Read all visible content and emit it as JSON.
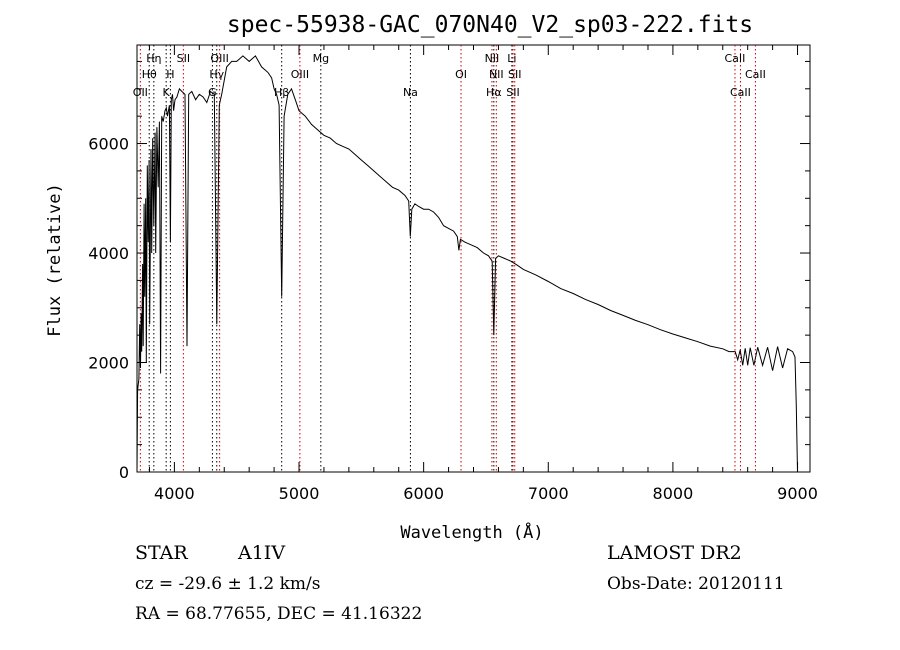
{
  "chart_data": {
    "type": "line",
    "title": "spec-55938-GAC_070N40_V2_sp03-222.fits",
    "xlabel": "Wavelength (Å)",
    "ylabel": "Flux (relative)",
    "xlim": [
      3700,
      9100
    ],
    "ylim": [
      0,
      7800
    ],
    "xticks": [
      4000,
      5000,
      6000,
      7000,
      8000,
      9000
    ],
    "yticks": [
      0,
      2000,
      4000,
      6000
    ],
    "grid": false,
    "series": [
      {
        "points": [
          [
            3700,
            0
          ],
          [
            3705,
            1500
          ],
          [
            3715,
            1700
          ],
          [
            3722,
            2700
          ],
          [
            3728,
            1900
          ],
          [
            3733,
            2900
          ],
          [
            3738,
            2200
          ],
          [
            3745,
            3800
          ],
          [
            3750,
            2300
          ],
          [
            3757,
            4900
          ],
          [
            3762,
            3200
          ],
          [
            3770,
            5000
          ],
          [
            3775,
            2000
          ],
          [
            3783,
            5600
          ],
          [
            3790,
            4200
          ],
          [
            3797,
            5700
          ],
          [
            3802,
            2700
          ],
          [
            3812,
            5900
          ],
          [
            3818,
            4000
          ],
          [
            3826,
            6100
          ],
          [
            3835,
            4500
          ],
          [
            3845,
            6200
          ],
          [
            3850,
            4000
          ],
          [
            3860,
            6300
          ],
          [
            3870,
            5200
          ],
          [
            3880,
            6400
          ],
          [
            3889,
            1800
          ],
          [
            3898,
            6500
          ],
          [
            3910,
            6400
          ],
          [
            3925,
            6600
          ],
          [
            3935,
            6650
          ],
          [
            3945,
            6500
          ],
          [
            3960,
            6700
          ],
          [
            3968,
            4200
          ],
          [
            3975,
            6800
          ],
          [
            3985,
            6900
          ],
          [
            3994,
            6600
          ],
          [
            4005,
            6800
          ],
          [
            4020,
            6850
          ],
          [
            4040,
            7000
          ],
          [
            4060,
            6950
          ],
          [
            4085,
            6900
          ],
          [
            4101,
            2300
          ],
          [
            4115,
            6900
          ],
          [
            4140,
            6950
          ],
          [
            4170,
            6800
          ],
          [
            4200,
            6900
          ],
          [
            4230,
            6850
          ],
          [
            4260,
            6750
          ],
          [
            4290,
            6950
          ],
          [
            4320,
            6900
          ],
          [
            4340,
            2700
          ],
          [
            4360,
            6700
          ],
          [
            4380,
            6900
          ],
          [
            4420,
            7400
          ],
          [
            4460,
            7500
          ],
          [
            4500,
            7500
          ],
          [
            4550,
            7600
          ],
          [
            4600,
            7500
          ],
          [
            4650,
            7600
          ],
          [
            4700,
            7400
          ],
          [
            4750,
            7300
          ],
          [
            4780,
            7200
          ],
          [
            4800,
            7000
          ],
          [
            4820,
            6900
          ],
          [
            4840,
            6700
          ],
          [
            4861,
            3200
          ],
          [
            4880,
            6500
          ],
          [
            4910,
            6900
          ],
          [
            4940,
            7000
          ],
          [
            4970,
            6800
          ],
          [
            5000,
            6600
          ],
          [
            5050,
            6500
          ],
          [
            5100,
            6350
          ],
          [
            5150,
            6250
          ],
          [
            5200,
            6150
          ],
          [
            5250,
            6100
          ],
          [
            5300,
            6000
          ],
          [
            5350,
            5950
          ],
          [
            5400,
            5900
          ],
          [
            5450,
            5800
          ],
          [
            5500,
            5700
          ],
          [
            5550,
            5600
          ],
          [
            5600,
            5500
          ],
          [
            5650,
            5400
          ],
          [
            5700,
            5300
          ],
          [
            5750,
            5200
          ],
          [
            5800,
            5150
          ],
          [
            5850,
            5050
          ],
          [
            5880,
            4950
          ],
          [
            5893,
            4300
          ],
          [
            5905,
            4800
          ],
          [
            5930,
            4900
          ],
          [
            5960,
            4850
          ],
          [
            6000,
            4800
          ],
          [
            6040,
            4800
          ],
          [
            6080,
            4750
          ],
          [
            6120,
            4650
          ],
          [
            6160,
            4500
          ],
          [
            6200,
            4450
          ],
          [
            6240,
            4400
          ],
          [
            6270,
            4300
          ],
          [
            6283,
            4050
          ],
          [
            6295,
            4250
          ],
          [
            6330,
            4200
          ],
          [
            6380,
            4150
          ],
          [
            6430,
            4100
          ],
          [
            6480,
            4000
          ],
          [
            6520,
            3950
          ],
          [
            6550,
            3850
          ],
          [
            6563,
            2500
          ],
          [
            6577,
            3900
          ],
          [
            6600,
            3950
          ],
          [
            6650,
            3900
          ],
          [
            6700,
            3850
          ],
          [
            6750,
            3780
          ],
          [
            6800,
            3700
          ],
          [
            6900,
            3600
          ],
          [
            7000,
            3480
          ],
          [
            7100,
            3350
          ],
          [
            7200,
            3260
          ],
          [
            7300,
            3150
          ],
          [
            7400,
            3060
          ],
          [
            7500,
            2950
          ],
          [
            7600,
            2860
          ],
          [
            7700,
            2770
          ],
          [
            7800,
            2690
          ],
          [
            7900,
            2600
          ],
          [
            8000,
            2520
          ],
          [
            8100,
            2450
          ],
          [
            8200,
            2380
          ],
          [
            8300,
            2300
          ],
          [
            8400,
            2250
          ],
          [
            8450,
            2200
          ],
          [
            8500,
            2200
          ],
          [
            8520,
            2050
          ],
          [
            8540,
            2230
          ],
          [
            8560,
            1950
          ],
          [
            8580,
            2260
          ],
          [
            8600,
            1950
          ],
          [
            8620,
            2270
          ],
          [
            8650,
            1950
          ],
          [
            8680,
            2280
          ],
          [
            8720,
            1950
          ],
          [
            8760,
            2280
          ],
          [
            8800,
            1850
          ],
          [
            8840,
            2290
          ],
          [
            8880,
            1900
          ],
          [
            8920,
            2250
          ],
          [
            8960,
            2200
          ],
          [
            8980,
            2100
          ],
          [
            8990,
            1200
          ],
          [
            9000,
            0
          ]
        ]
      }
    ],
    "lines": [
      {
        "label": "OII",
        "x": 3727,
        "row": 3,
        "color": "#cc0000"
      },
      {
        "label": "Hθ",
        "x": 3798,
        "row": 2,
        "color": "#000000"
      },
      {
        "label": "Hη",
        "x": 3835,
        "row": 1,
        "color": "#000000"
      },
      {
        "label": "K",
        "x": 3934,
        "row": 3,
        "color": "#000000"
      },
      {
        "label": "H",
        "x": 3968,
        "row": 2,
        "color": "#000000"
      },
      {
        "label": "SII",
        "x": 4072,
        "row": 1,
        "color": "#cc0000"
      },
      {
        "label": "G",
        "x": 4305,
        "row": 3,
        "color": "#000000"
      },
      {
        "label": "Hγ",
        "x": 4340,
        "row": 2,
        "color": "#000000"
      },
      {
        "label": "OIII",
        "x": 4363,
        "row": 1,
        "color": "#cc0000"
      },
      {
        "label": "Hβ",
        "x": 4861,
        "row": 3,
        "color": "#000000"
      },
      {
        "label": "OIII",
        "x": 5007,
        "row": 2,
        "color": "#cc0000"
      },
      {
        "label": "Mg",
        "x": 5175,
        "row": 1,
        "color": "#000000"
      },
      {
        "label": "Na",
        "x": 5894,
        "row": 3,
        "color": "#000000"
      },
      {
        "label": "OI",
        "x": 6300,
        "row": 2,
        "color": "#cc0000"
      },
      {
        "label": "NII",
        "x": 6548,
        "row": 1,
        "color": "#cc0000"
      },
      {
        "label": "Hα",
        "x": 6563,
        "row": 3,
        "color": "#000000"
      },
      {
        "label": "NII",
        "x": 6583,
        "row": 2,
        "color": "#cc0000"
      },
      {
        "label": "SII",
        "x": 6717,
        "row": 3,
        "color": "#cc0000"
      },
      {
        "label": "Li",
        "x": 6708,
        "row": 1,
        "color": "#000000"
      },
      {
        "label": "SII",
        "x": 6731,
        "row": 2,
        "color": "#cc0000"
      },
      {
        "label": "CaII",
        "x": 8498,
        "row": 1,
        "color": "#cc0000"
      },
      {
        "label": "CaII",
        "x": 8542,
        "row": 3,
        "color": "#cc0000"
      },
      {
        "label": "CaII",
        "x": 8662,
        "row": 2,
        "color": "#cc0000"
      }
    ]
  },
  "info": {
    "star": "STAR",
    "class": "A1IV",
    "cz": "cz = -29.6 ± 1.2 km/s",
    "radec": "RA =  68.77655, DEC =  41.16322",
    "survey": "LAMOST DR2",
    "obsdate": "Obs-Date: 20120111"
  }
}
